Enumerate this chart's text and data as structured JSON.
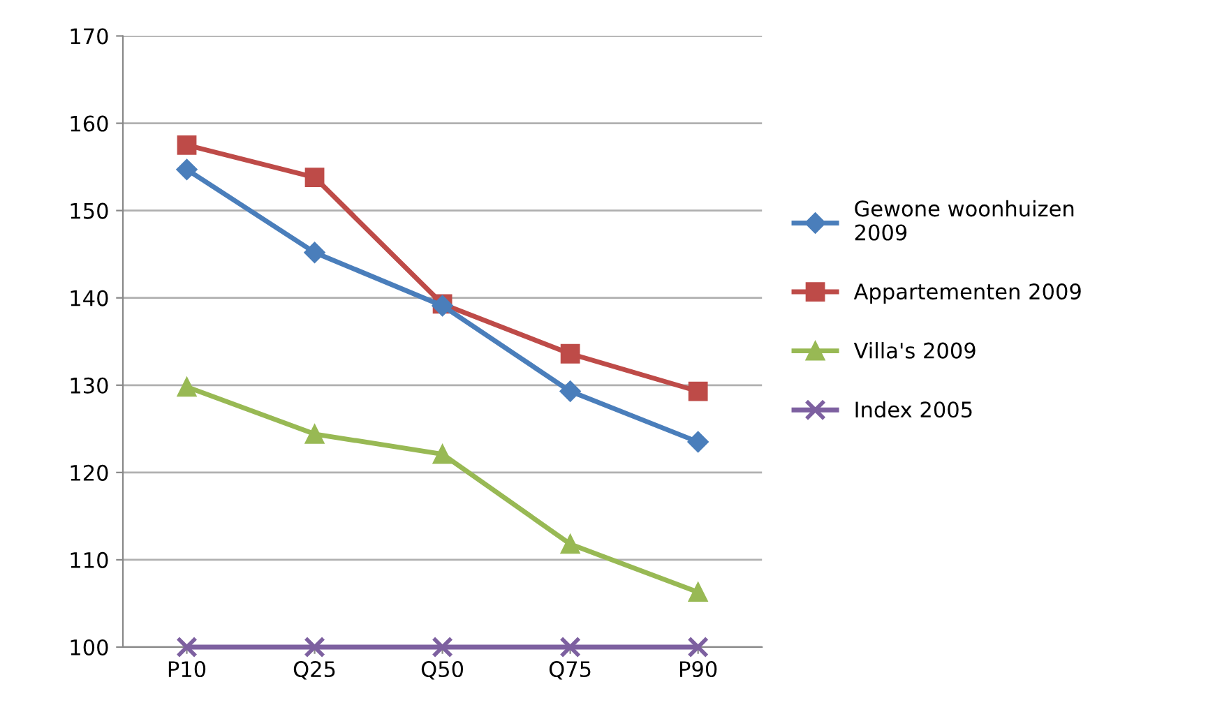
{
  "chart_data": {
    "type": "line",
    "categories": [
      "P10",
      "Q25",
      "Q50",
      "Q75",
      "P90"
    ],
    "series": [
      {
        "name": "Gewone woonhuizen\n2009",
        "color": "#4a7ebb",
        "marker": "diamond",
        "values": [
          154.7,
          145.2,
          139.1,
          129.3,
          123.5
        ]
      },
      {
        "name": "Appartementen 2009",
        "color": "#be4b48",
        "marker": "square",
        "values": [
          157.5,
          153.8,
          139.3,
          133.6,
          129.3
        ]
      },
      {
        "name": "Villa's 2009",
        "color": "#98b954",
        "marker": "triangle",
        "values": [
          129.8,
          124.4,
          122.1,
          111.8,
          106.3
        ]
      },
      {
        "name": "Index 2005",
        "color": "#7d60a0",
        "marker": "cross",
        "values": [
          100,
          100,
          100,
          100,
          100
        ]
      }
    ],
    "ylim": [
      100,
      170
    ],
    "yticks": [
      100,
      110,
      120,
      130,
      140,
      150,
      160,
      170
    ],
    "grid": "y",
    "legend": "right",
    "line_style": "solid"
  }
}
